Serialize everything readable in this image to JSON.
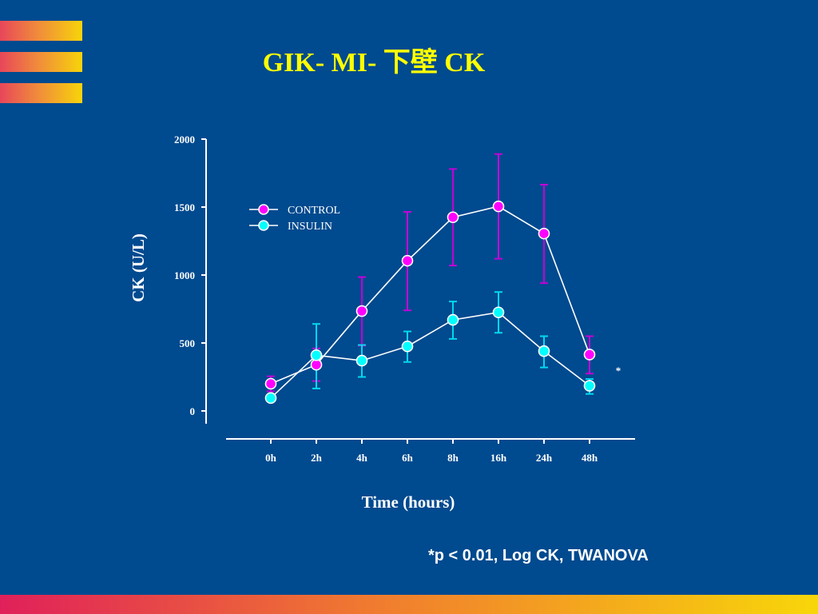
{
  "slide": {
    "title": "GIK- MI- 下壁 CK",
    "footnote": "*p < 0.01, Log CK, TWANOVA"
  },
  "colors": {
    "background": "#004a8f",
    "title": "#ffff00",
    "control": "#ff00ff",
    "control_error": "#c400d8",
    "insulin": "#00ffff",
    "insulin_error": "#00d8f0",
    "line": "#ffffff"
  },
  "chart_data": {
    "type": "line",
    "title": "",
    "xlabel": "Time (hours)",
    "ylabel": "CK (U/L)",
    "categories": [
      "0h",
      "2h",
      "4h",
      "6h",
      "8h",
      "16h",
      "24h",
      "48h"
    ],
    "ylim": [
      0,
      2000
    ],
    "yticks": [
      0,
      500,
      1000,
      1500,
      2000
    ],
    "grid": false,
    "legend_position": "top-left",
    "series": [
      {
        "name": "CONTROL",
        "values": [
          200,
          340,
          735,
          1105,
          1425,
          1505,
          1305,
          415
        ],
        "error_low": [
          145,
          220,
          480,
          740,
          1070,
          1120,
          940,
          275
        ],
        "error_high": [
          255,
          460,
          985,
          1465,
          1780,
          1890,
          1665,
          550
        ]
      },
      {
        "name": "INSULIN",
        "values": [
          95,
          410,
          370,
          475,
          670,
          725,
          440,
          185
        ],
        "error_low": [
          95,
          165,
          250,
          360,
          530,
          575,
          320,
          125
        ],
        "error_high": [
          95,
          640,
          485,
          585,
          805,
          875,
          550,
          235
        ]
      }
    ],
    "annotations": [
      {
        "text": "*",
        "category": "48h",
        "value": 330
      }
    ]
  }
}
